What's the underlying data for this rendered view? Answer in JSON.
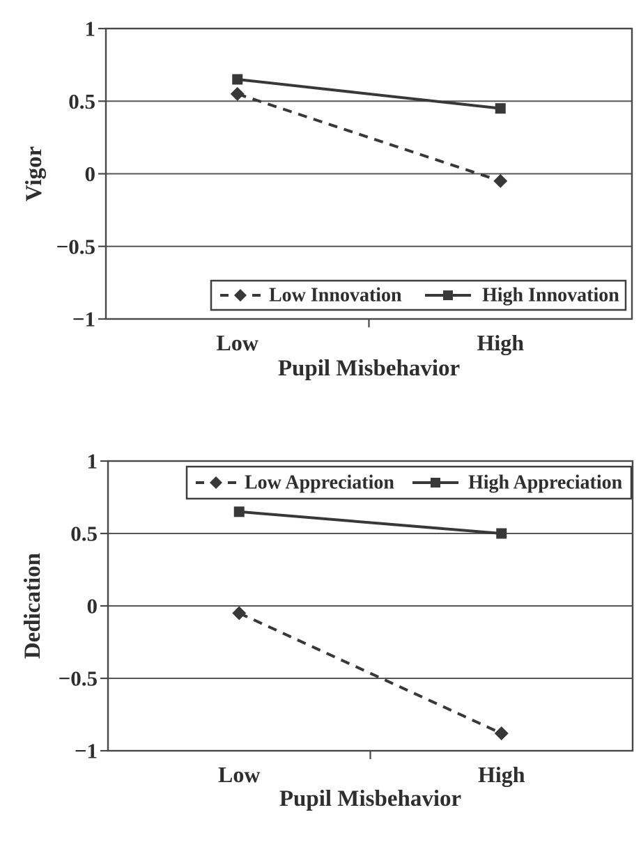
{
  "figure": {
    "description": "Two stacked interaction line charts",
    "background": "#ffffff"
  },
  "colors": {
    "line": "#383838",
    "marker": "#383838",
    "text": "#2e2e2e",
    "grid": "#565656",
    "frame": "#484848",
    "legend_border": "#3f3f3f",
    "legend_background": "#ffffff"
  },
  "chart_data": [
    {
      "id": "vigor",
      "type": "line",
      "title": "",
      "categories": [
        "Low",
        "High"
      ],
      "xlabel": "Pupil Misbehavior",
      "ylabel": "Vigor",
      "ylim": [
        -1,
        1
      ],
      "yticks": [
        1,
        0.5,
        0,
        -0.5,
        -1
      ],
      "ytick_labels": [
        "1",
        "0.5",
        "0",
        "−0.5",
        "−1"
      ],
      "grid": true,
      "legend_position": "inside-bottom",
      "series": [
        {
          "name": "Low Innovation",
          "line_style": "dashed",
          "marker": "diamond",
          "values": [
            0.55,
            -0.05
          ]
        },
        {
          "name": "High Innovation",
          "line_style": "solid",
          "marker": "square",
          "values": [
            0.65,
            0.45
          ]
        }
      ]
    },
    {
      "id": "dedication",
      "type": "line",
      "title": "",
      "categories": [
        "Low",
        "High"
      ],
      "xlabel": "Pupil Misbehavior",
      "ylabel": "Dedication",
      "ylim": [
        -1,
        1
      ],
      "yticks": [
        1,
        0.5,
        0,
        -0.5,
        -1
      ],
      "ytick_labels": [
        "1",
        "0.5",
        "0",
        "−0.5",
        "−1"
      ],
      "grid": true,
      "legend_position": "inside-top",
      "series": [
        {
          "name": "Low Appreciation",
          "line_style": "dashed",
          "marker": "diamond",
          "values": [
            -0.05,
            -0.88
          ]
        },
        {
          "name": "High Appreciation",
          "line_style": "solid",
          "marker": "square",
          "values": [
            0.65,
            0.5
          ]
        }
      ]
    }
  ]
}
